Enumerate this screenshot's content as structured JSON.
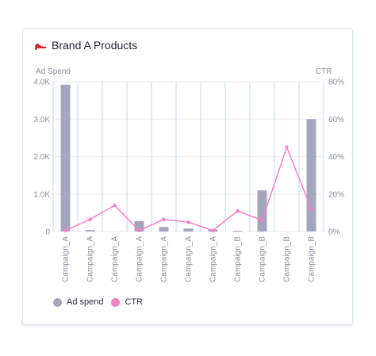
{
  "card": {
    "title": "Brand A Products",
    "title_icon": "high-heel-shoe-icon"
  },
  "colors": {
    "bar": "#a4a6bb",
    "line": "#f77fc8",
    "grid": "#e9edf3",
    "vgrid": "#c9daf0"
  },
  "chart_data": {
    "type": "bar",
    "categories": [
      "Campaign_A",
      "Campaign_A",
      "Campaign_A",
      "Campaign_A",
      "Campaign_A",
      "Campaign_A",
      "Campaign_A",
      "Campaign_B",
      "Campaign_B",
      "Campaign_B",
      "Campaign_B"
    ],
    "series": [
      {
        "name": "Ad spend",
        "type": "bar",
        "axis": "left",
        "values": [
          3920,
          40,
          0,
          280,
          120,
          80,
          50,
          20,
          1100,
          0,
          3000
        ]
      },
      {
        "name": "CTR",
        "type": "line",
        "axis": "right",
        "values": [
          0.5,
          6.5,
          14,
          0.5,
          6.5,
          5,
          0.5,
          11,
          6,
          45,
          12
        ]
      }
    ],
    "ylabel": "Ad Spend",
    "y2label": "CTR",
    "ylim": [
      0,
      4000
    ],
    "y2lim": [
      0,
      80
    ],
    "yticks": [
      "0",
      "1.0K",
      "2.0K",
      "3.0K",
      "4.0K"
    ],
    "y2ticks": [
      "0%",
      "20%",
      "40%",
      "60%",
      "80%"
    ],
    "grid": true,
    "legend_position": "bottom-left"
  }
}
